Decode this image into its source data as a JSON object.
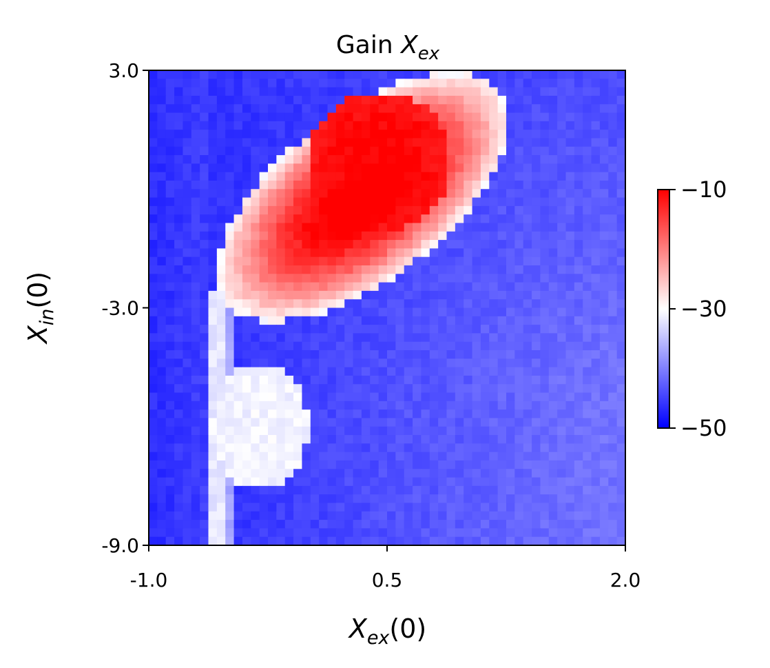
{
  "chart_data": {
    "type": "heatmap",
    "title": {
      "base": "Gain ",
      "var": "X",
      "sub": "ex"
    },
    "xlabel": {
      "var": "X",
      "sub": "ex",
      "tail": "(0)"
    },
    "ylabel": {
      "var": "X",
      "sub": "in",
      "tail": "(0)"
    },
    "xlim": [
      -1.0,
      2.0
    ],
    "ylim": [
      -9.0,
      3.0
    ],
    "x_ticks": [
      {
        "value": -1.0,
        "label": "-1.0"
      },
      {
        "value": 0.5,
        "label": "0.5"
      },
      {
        "value": 2.0,
        "label": "2.0"
      }
    ],
    "y_ticks": [
      {
        "value": 3.0,
        "label": "3.0"
      },
      {
        "value": -3.0,
        "label": "-3.0"
      },
      {
        "value": -9.0,
        "label": "-9.0"
      }
    ],
    "colorbar": {
      "colormap": "bwr",
      "range": [
        -50,
        -10
      ],
      "ticks": [
        {
          "value": -10,
          "label": "−10"
        },
        {
          "value": -30,
          "label": "−30"
        },
        {
          "value": -50,
          "label": "−50"
        }
      ]
    },
    "grid": false,
    "approx_structure": {
      "background_value_range": [
        -46,
        -40
      ],
      "hotspot_peak_value": -10,
      "hotspot_peak_location": {
        "x": 0.4,
        "y": 0.7
      },
      "region_above_minus_30": {
        "x_range": [
          -0.5,
          1.5
        ],
        "y_range": [
          -6.5,
          1.7
        ]
      },
      "white_vertical_band_x": -0.55
    }
  },
  "colors": {
    "low": "#0000ff",
    "mid": "#ffffff",
    "high": "#ff0000"
  }
}
